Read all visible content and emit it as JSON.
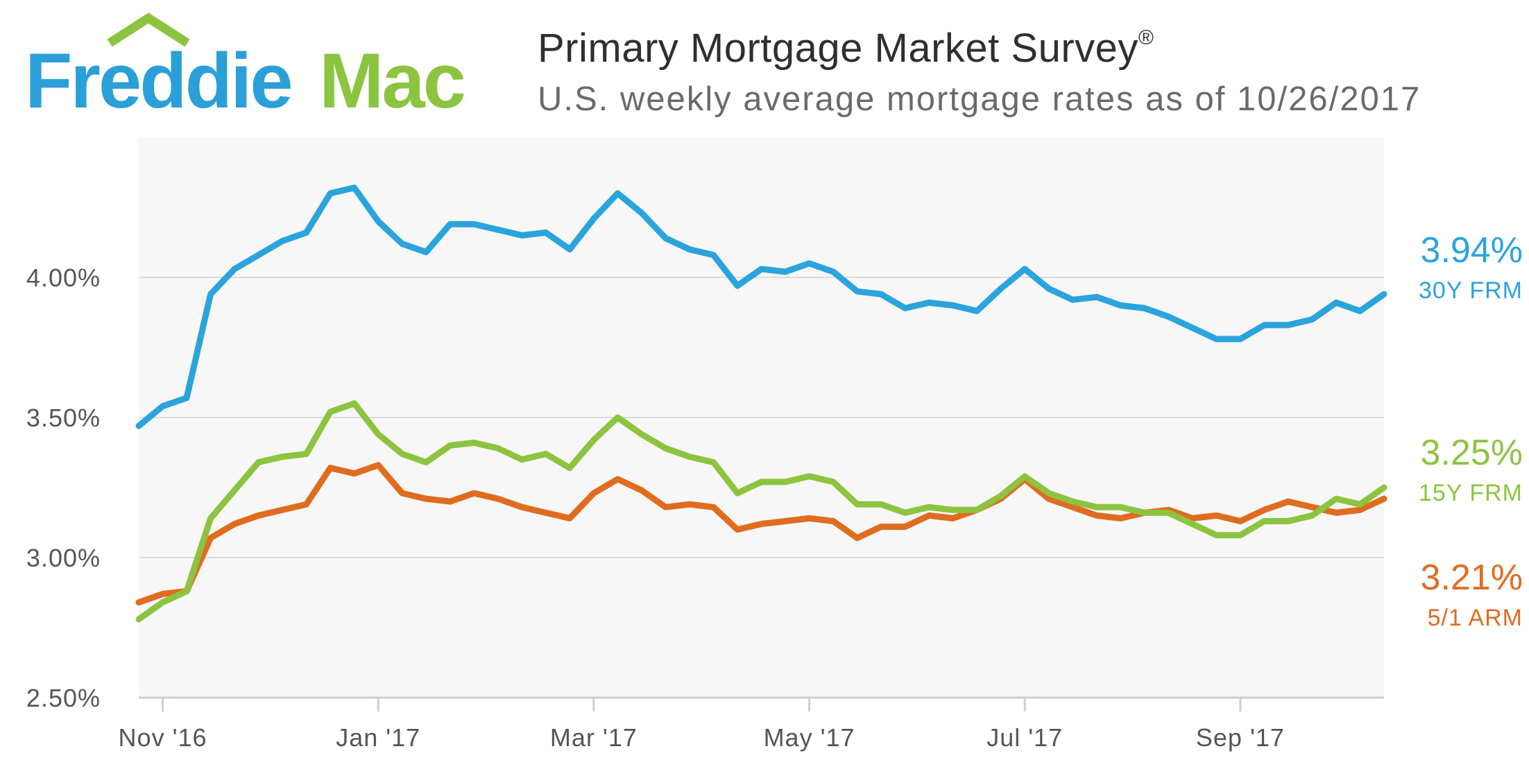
{
  "logo": {
    "word1": "Freddie",
    "word2": "Mac",
    "colors": {
      "word1": "#2b9fd8",
      "word2": "#8cc43f",
      "roof": "#8cc43f"
    }
  },
  "header": {
    "title": "Primary Mortgage Market Survey",
    "title_mark": "®",
    "subtitle": "U.S. weekly average mortgage rates as of 10/26/2017"
  },
  "chart_data": {
    "type": "line",
    "title": "Primary Mortgage Market Survey®",
    "subtitle": "U.S. weekly average mortgage rates as of 10/26/2017",
    "xlabel": "",
    "ylabel": "",
    "ylim": [
      2.5,
      4.5
    ],
    "yticks": [
      2.5,
      3.0,
      3.5,
      4.0
    ],
    "ytick_labels": [
      "2.50%",
      "3.00%",
      "3.50%",
      "4.00%"
    ],
    "xticks": [
      {
        "label": "Nov '16",
        "week": 1
      },
      {
        "label": "Jan '17",
        "week": 10
      },
      {
        "label": "Mar '17",
        "week": 19
      },
      {
        "label": "May '17",
        "week": 28
      },
      {
        "label": "Jul '17",
        "week": 37
      },
      {
        "label": "Sep '17",
        "week": 46
      }
    ],
    "grid": true,
    "series": [
      {
        "name": "30Y FRM",
        "color": "#2aa4dc",
        "end_value": "3.94%",
        "end_label": "30Y FRM",
        "values": [
          3.47,
          3.54,
          3.57,
          3.94,
          4.03,
          4.08,
          4.13,
          4.16,
          4.3,
          4.32,
          4.2,
          4.12,
          4.09,
          4.19,
          4.19,
          4.17,
          4.15,
          4.16,
          4.1,
          4.21,
          4.3,
          4.23,
          4.14,
          4.1,
          4.08,
          3.97,
          4.03,
          4.02,
          4.05,
          4.02,
          3.95,
          3.94,
          3.89,
          3.91,
          3.9,
          3.88,
          3.96,
          4.03,
          3.96,
          3.92,
          3.93,
          3.9,
          3.89,
          3.86,
          3.82,
          3.78,
          3.78,
          3.83,
          3.83,
          3.85,
          3.91,
          3.88,
          3.94
        ]
      },
      {
        "name": "15Y FRM",
        "color": "#8cc43f",
        "end_value": "3.25%",
        "end_label": "15Y FRM",
        "values": [
          2.78,
          2.84,
          2.88,
          3.14,
          3.24,
          3.34,
          3.36,
          3.37,
          3.52,
          3.55,
          3.44,
          3.37,
          3.34,
          3.4,
          3.41,
          3.39,
          3.35,
          3.37,
          3.32,
          3.42,
          3.5,
          3.44,
          3.39,
          3.36,
          3.34,
          3.23,
          3.27,
          3.27,
          3.29,
          3.27,
          3.19,
          3.19,
          3.16,
          3.18,
          3.17,
          3.17,
          3.22,
          3.29,
          3.23,
          3.2,
          3.18,
          3.18,
          3.16,
          3.16,
          3.12,
          3.08,
          3.08,
          3.13,
          3.13,
          3.15,
          3.21,
          3.19,
          3.25
        ]
      },
      {
        "name": "5/1 ARM",
        "color": "#e06c1f",
        "end_value": "3.21%",
        "end_label": "5/1 ARM",
        "values": [
          2.84,
          2.87,
          2.88,
          3.07,
          3.12,
          3.15,
          3.17,
          3.19,
          3.32,
          3.3,
          3.33,
          3.23,
          3.21,
          3.2,
          3.23,
          3.21,
          3.18,
          3.16,
          3.14,
          3.23,
          3.28,
          3.24,
          3.18,
          3.19,
          3.18,
          3.1,
          3.12,
          3.13,
          3.14,
          3.13,
          3.07,
          3.11,
          3.11,
          3.15,
          3.14,
          3.17,
          3.21,
          3.28,
          3.21,
          3.18,
          3.15,
          3.14,
          3.16,
          3.17,
          3.14,
          3.15,
          3.13,
          3.17,
          3.2,
          3.18,
          3.16,
          3.17,
          3.21
        ]
      }
    ]
  }
}
